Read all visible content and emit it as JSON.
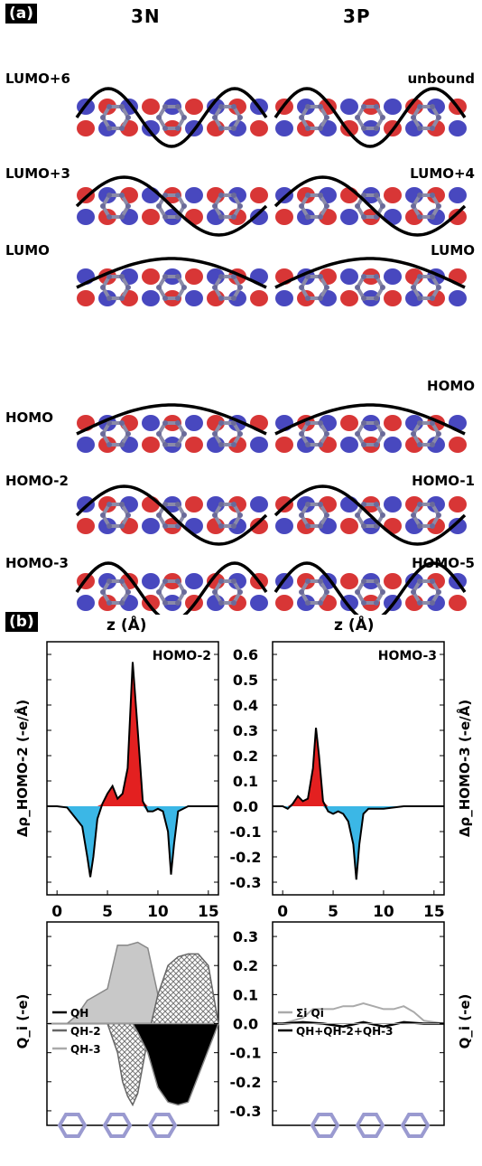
{
  "panel_a": {
    "tag": "(a)",
    "col_left": "3N",
    "col_right": "3P",
    "left_labels": [
      "LUMO+6",
      "LUMO+3",
      "LUMO",
      "HOMO",
      "HOMO-2",
      "HOMO-3"
    ],
    "right_labels": [
      "unbound",
      "LUMO+4",
      "LUMO",
      "HOMO",
      "HOMO-1",
      "HOMO-5"
    ]
  },
  "panel_b": {
    "tag": "(b)",
    "xlabel": "z (Å)",
    "top_left_label": "HOMO-2",
    "top_right_label": "HOMO-3",
    "ylabel_left": "Δρ_HOMO-2 (-e/Å)",
    "ylabel_right": "Δρ_HOMO-3 (-e/Å)",
    "ylabel_q": "Q_i (-e)",
    "legend_left": [
      "Q_H",
      "Q_H-2",
      "Q_H-3"
    ],
    "legend_right": [
      "Σ_i Q_i",
      "Q_H+Q_H-2+Q_H-3"
    ]
  },
  "chart_data": [
    {
      "type": "area",
      "title": "HOMO-2",
      "xlabel": "z (Å)",
      "ylabel": "Δρ HOMO-2 (-e/Å)",
      "xlim": [
        -1,
        16
      ],
      "ylim": [
        -0.35,
        0.65
      ],
      "xticks": [
        "0",
        "5",
        "10",
        "15"
      ],
      "yticks": [
        "0.6",
        "0.5",
        "0.4",
        "0.3",
        "0.2",
        "0.1",
        "0.0",
        "-0.1",
        "-0.2",
        "-0.3"
      ],
      "x": [
        -1,
        0,
        1,
        1.5,
        2.5,
        3,
        3.3,
        3.6,
        4,
        4.5,
        5,
        5.5,
        6,
        6.5,
        7,
        7.5,
        8,
        8.5,
        9,
        9.5,
        10,
        10.5,
        11,
        11.3,
        11.6,
        12,
        13,
        16
      ],
      "y": [
        0,
        0,
        -0.005,
        -0.03,
        -0.08,
        -0.2,
        -0.28,
        -0.2,
        -0.05,
        0.01,
        0.05,
        0.08,
        0.03,
        0.05,
        0.15,
        0.57,
        0.3,
        0.02,
        -0.02,
        -0.02,
        -0.01,
        -0.02,
        -0.1,
        -0.27,
        -0.15,
        -0.02,
        0,
        0
      ]
    },
    {
      "type": "area",
      "title": "HOMO-3",
      "xlabel": "z (Å)",
      "ylabel": "Δρ HOMO-3 (-e/Å)",
      "xlim": [
        -1,
        16
      ],
      "ylim": [
        -0.35,
        0.65
      ],
      "xticks": [
        "0",
        "5",
        "10",
        "15"
      ],
      "yticks": [
        "0.6",
        "0.5",
        "0.4",
        "0.3",
        "0.2",
        "0.1",
        "0.0",
        "-0.1",
        "-0.2",
        "-0.3"
      ],
      "x": [
        -1,
        0,
        0.5,
        1,
        1.5,
        2,
        2.5,
        3,
        3.3,
        3.6,
        4,
        4.5,
        5,
        5.5,
        6,
        6.5,
        7,
        7.3,
        7.6,
        8,
        8.5,
        9,
        10,
        11,
        12,
        16
      ],
      "y": [
        0,
        0,
        -0.01,
        0.01,
        0.04,
        0.02,
        0.03,
        0.15,
        0.31,
        0.2,
        0.02,
        -0.02,
        -0.03,
        -0.02,
        -0.03,
        -0.06,
        -0.15,
        -0.29,
        -0.15,
        -0.03,
        -0.01,
        -0.01,
        -0.01,
        -0.005,
        0,
        0
      ]
    },
    {
      "type": "area",
      "ylabel": "Q_i (-e)",
      "xlabel": "z (Å)",
      "ylim": [
        -0.35,
        0.35
      ],
      "yticks": [
        "0.3",
        "0.2",
        "0.1",
        "0.0",
        "-0.1",
        "-0.2",
        "-0.3"
      ],
      "series": [
        {
          "name": "Q_H",
          "x": [
            -1,
            0,
            4,
            6,
            7.5,
            8,
            9,
            10,
            11,
            12,
            13,
            14,
            16
          ],
          "y": [
            0,
            0,
            0,
            0,
            0,
            -0.03,
            -0.1,
            -0.22,
            -0.27,
            -0.28,
            -0.27,
            -0.18,
            0
          ]
        },
        {
          "name": "Q_H-2",
          "x": [
            -1,
            0,
            2,
            4,
            5,
            6,
            6.5,
            7,
            7.5,
            8,
            9,
            10,
            11,
            12,
            13,
            14,
            15,
            16
          ],
          "y": [
            0,
            0,
            0,
            0,
            0,
            -0.1,
            -0.2,
            -0.25,
            -0.28,
            -0.24,
            -0.05,
            0.1,
            0.2,
            0.23,
            0.24,
            0.24,
            0.2,
            0
          ]
        },
        {
          "name": "Q_H-3",
          "x": [
            -1,
            0,
            1,
            2,
            3,
            4,
            5,
            6,
            7,
            8,
            9,
            10,
            11,
            13,
            16
          ],
          "y": [
            0,
            0,
            0,
            0.03,
            0.08,
            0.1,
            0.12,
            0.27,
            0.27,
            0.28,
            0.26,
            0.1,
            0.01,
            0,
            0
          ]
        }
      ]
    },
    {
      "type": "line",
      "ylabel": "Q_i (-e)",
      "xlabel": "z (Å)",
      "ylim": [
        -0.35,
        0.35
      ],
      "yticks": [
        "0.3",
        "0.2",
        "0.1",
        "0.0",
        "-0.1",
        "-0.2",
        "-0.3"
      ],
      "series": [
        {
          "name": "Σ_i Q_i",
          "x": [
            -1,
            0,
            2,
            3,
            4,
            5,
            6,
            7,
            8,
            9,
            10,
            11,
            12,
            13,
            14,
            16
          ],
          "y": [
            0,
            0,
            0.02,
            0.05,
            0.05,
            0.05,
            0.06,
            0.06,
            0.07,
            0.06,
            0.05,
            0.05,
            0.06,
            0.04,
            0.01,
            0
          ]
        },
        {
          "name": "Q_H+Q_H-2+Q_H-3",
          "x": [
            -1,
            0,
            2,
            4,
            6,
            8,
            10,
            12,
            14,
            16
          ],
          "y": [
            0,
            0,
            0.005,
            0,
            -0.01,
            0.005,
            -0.01,
            0.005,
            0,
            0
          ]
        }
      ]
    }
  ]
}
